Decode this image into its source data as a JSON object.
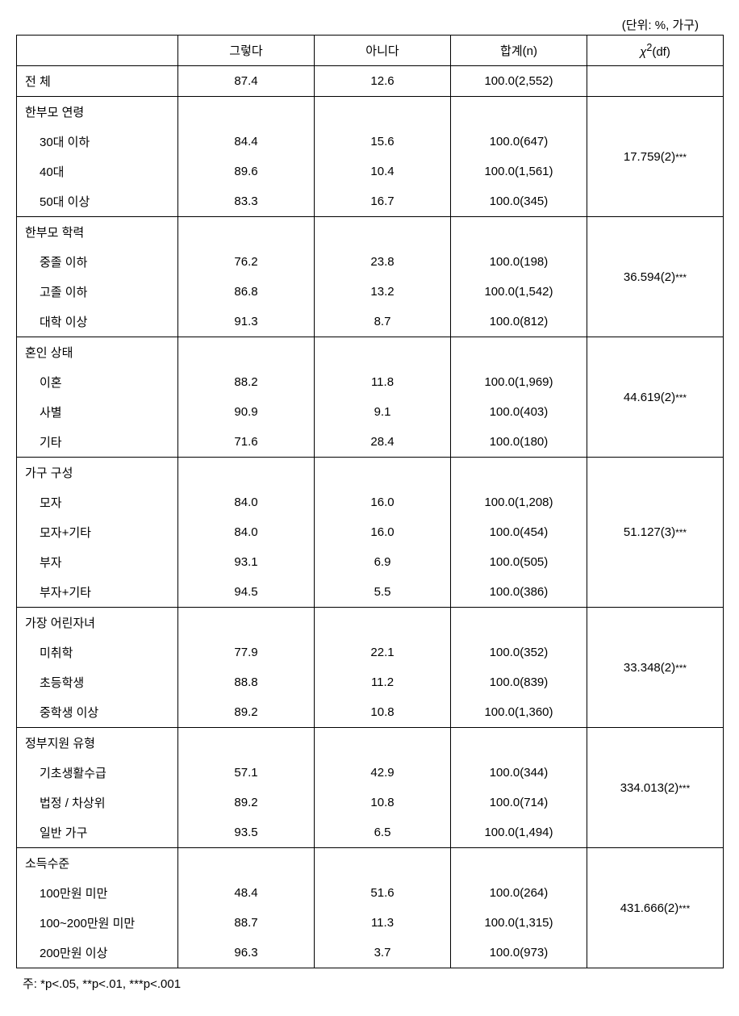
{
  "unit_label": "(단위: %, 가구)",
  "headers": {
    "col1": "",
    "col2": "그렇다",
    "col3": "아니다",
    "col4": "합계(n)",
    "col5_chi": "χ",
    "col5_sup": "2",
    "col5_df": "(df)"
  },
  "total_row": {
    "label": "전 체",
    "yes": "87.4",
    "no": "12.6",
    "total": "100.0(2,552)",
    "stat": ""
  },
  "sections": [
    {
      "title": "한부모 연령",
      "rows": [
        {
          "label": "30대 이하",
          "yes": "84.4",
          "no": "15.6",
          "total": "100.0(647)"
        },
        {
          "label": "40대",
          "yes": "89.6",
          "no": "10.4",
          "total": "100.0(1,561)"
        },
        {
          "label": "50대 이상",
          "yes": "83.3",
          "no": "16.7",
          "total": "100.0(345)"
        }
      ],
      "stat": "17.759(2)",
      "stars": "***"
    },
    {
      "title": "한부모 학력",
      "rows": [
        {
          "label": "중졸 이하",
          "yes": "76.2",
          "no": "23.8",
          "total": "100.0(198)"
        },
        {
          "label": "고졸 이하",
          "yes": "86.8",
          "no": "13.2",
          "total": "100.0(1,542)"
        },
        {
          "label": "대학 이상",
          "yes": "91.3",
          "no": "8.7",
          "total": "100.0(812)"
        }
      ],
      "stat": "36.594(2)",
      "stars": "***"
    },
    {
      "title": "혼인 상태",
      "rows": [
        {
          "label": "이혼",
          "yes": "88.2",
          "no": "11.8",
          "total": "100.0(1,969)"
        },
        {
          "label": "사별",
          "yes": "90.9",
          "no": "9.1",
          "total": "100.0(403)"
        },
        {
          "label": "기타",
          "yes": "71.6",
          "no": "28.4",
          "total": "100.0(180)"
        }
      ],
      "stat": "44.619(2)",
      "stars": "***"
    },
    {
      "title": "가구 구성",
      "rows": [
        {
          "label": "모자",
          "yes": "84.0",
          "no": "16.0",
          "total": "100.0(1,208)"
        },
        {
          "label": "모자+기타",
          "yes": "84.0",
          "no": "16.0",
          "total": "100.0(454)"
        },
        {
          "label": "부자",
          "yes": "93.1",
          "no": "6.9",
          "total": "100.0(505)"
        },
        {
          "label": "부자+기타",
          "yes": "94.5",
          "no": "5.5",
          "total": "100.0(386)"
        }
      ],
      "stat": "51.127(3)",
      "stars": "***"
    },
    {
      "title": "가장 어린자녀",
      "rows": [
        {
          "label": "미취학",
          "yes": "77.9",
          "no": "22.1",
          "total": "100.0(352)"
        },
        {
          "label": "초등학생",
          "yes": "88.8",
          "no": "11.2",
          "total": "100.0(839)"
        },
        {
          "label": "중학생 이상",
          "yes": "89.2",
          "no": "10.8",
          "total": "100.0(1,360)"
        }
      ],
      "stat": "33.348(2)",
      "stars": "***"
    },
    {
      "title": "정부지원 유형",
      "rows": [
        {
          "label": "기초생활수급",
          "yes": "57.1",
          "no": "42.9",
          "total": "100.0(344)"
        },
        {
          "label": "법정 / 차상위",
          "yes": "89.2",
          "no": "10.8",
          "total": "100.0(714)"
        },
        {
          "label": "일반 가구",
          "yes": "93.5",
          "no": "6.5",
          "total": "100.0(1,494)"
        }
      ],
      "stat": "334.013(2)",
      "stars": "***"
    },
    {
      "title": "소득수준",
      "rows": [
        {
          "label": "100만원 미만",
          "yes": "48.4",
          "no": "51.6",
          "total": "100.0(264)"
        },
        {
          "label": "100~200만원 미만",
          "yes": "88.7",
          "no": "11.3",
          "total": "100.0(1,315)"
        },
        {
          "label": "200만원 이상",
          "yes": "96.3",
          "no": "3.7",
          "total": "100.0(973)"
        }
      ],
      "stat": "431.666(2)",
      "stars": "***"
    }
  ],
  "footnote": "주: *p<.05, **p<.01, ***p<.001"
}
